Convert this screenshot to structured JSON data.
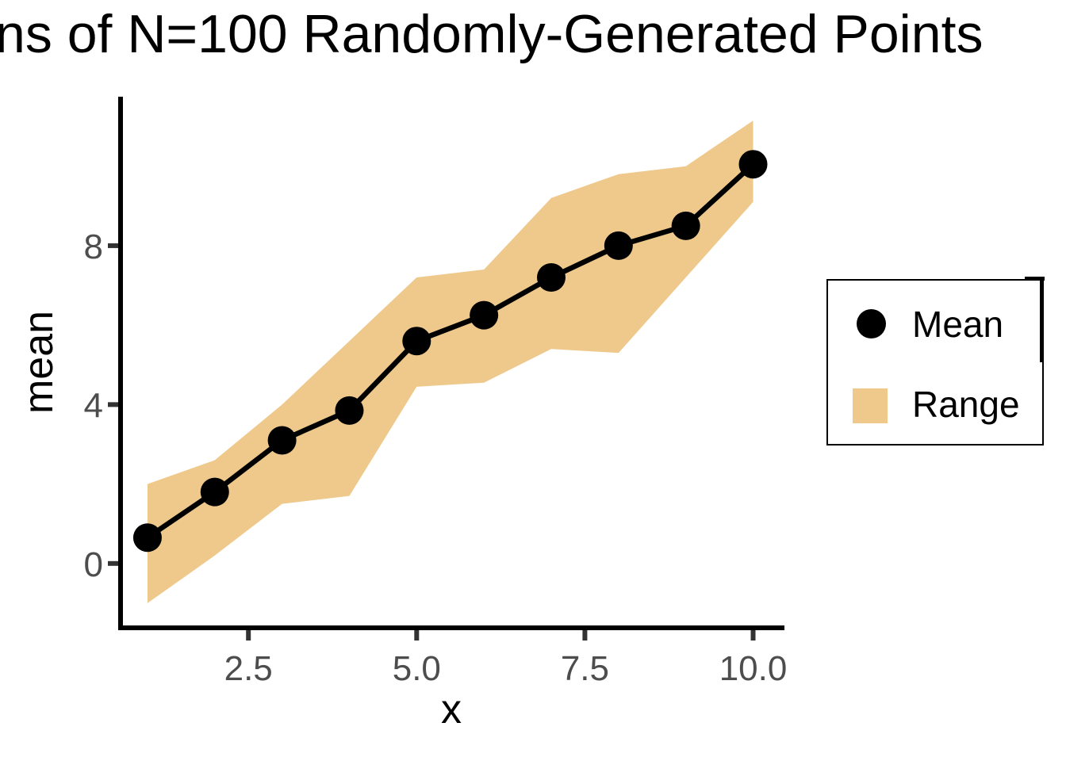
{
  "title": "ns of N=100 Randomly-Generated Points",
  "chart_data": {
    "type": "line",
    "title": "ns of N=100 Randomly-Generated Points",
    "xlabel": "x",
    "ylabel": "mean",
    "x": [
      1,
      2,
      3,
      4,
      5,
      6,
      7,
      8,
      9,
      10
    ],
    "series": [
      {
        "name": "Mean",
        "type": "points-with-line",
        "values": [
          0.65,
          1.8,
          3.1,
          3.85,
          5.6,
          6.25,
          7.2,
          8.0,
          8.5,
          10.05
        ]
      },
      {
        "name": "Range",
        "type": "ribbon",
        "ymin": [
          -1.0,
          0.2,
          1.5,
          1.7,
          4.45,
          4.55,
          5.4,
          5.3,
          7.2,
          9.1
        ],
        "ymax": [
          2.0,
          2.6,
          4.0,
          5.6,
          7.2,
          7.4,
          9.2,
          9.8,
          10.0,
          11.15
        ]
      }
    ],
    "xlim": [
      0.6,
      10.43
    ],
    "ylim": [
      -1.62,
      11.75
    ],
    "x_ticks": [
      2.5,
      5.0,
      7.5,
      10.0
    ],
    "x_tick_labels": [
      "2.5",
      "5.0",
      "7.5",
      "10.0"
    ],
    "y_ticks": [
      0,
      4,
      8
    ],
    "y_tick_labels": [
      "0",
      "4",
      "8"
    ],
    "grid": false,
    "legend_position": "right",
    "colors": {
      "mean": "#000000",
      "range": "#EFC98B",
      "axis_line": "#000000",
      "tick_mark": "#333333",
      "tick_label": "#4d4d4d",
      "title": "#000000"
    }
  },
  "legend": {
    "items": [
      {
        "label": "Mean",
        "marker": "circle",
        "color": "#000000"
      },
      {
        "label": "Range",
        "marker": "square",
        "color": "#EFC98B"
      }
    ]
  }
}
